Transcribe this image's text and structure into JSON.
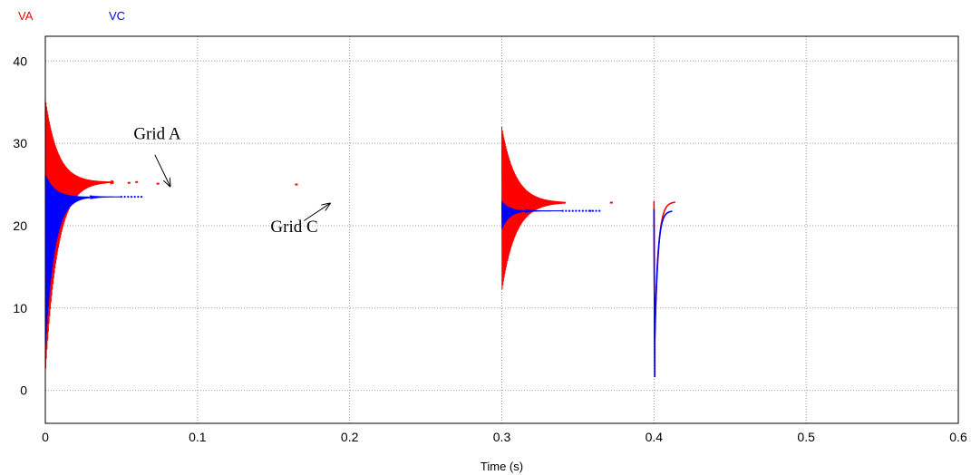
{
  "colors": {
    "VA": "#ff0000",
    "VC": "#0000ff",
    "grid": "#9a9a9a",
    "axis": "#000000",
    "background": "#ffffff"
  },
  "chart_data": {
    "type": "line",
    "xlabel": "Time (s)",
    "ylabel": "",
    "xlim": [
      0,
      0.6
    ],
    "ylim": [
      -4,
      43
    ],
    "x_ticks": [
      "0",
      "0.1",
      "0.2",
      "0.3",
      "0.4",
      "0.5",
      "0.6"
    ],
    "y_ticks": [
      "0",
      "10",
      "20",
      "30",
      "40"
    ],
    "grid": true,
    "legend_position": "top-left",
    "series": [
      {
        "name": "VA",
        "color": "#ff0000",
        "segments": [
          {
            "kind": "ringdown",
            "x_start": 0.0,
            "x_end": 0.045,
            "final": 25.3,
            "upper_start": 35.5,
            "lower_start": 2.0,
            "tau": 0.008
          },
          {
            "kind": "ringdown",
            "x_start": 0.3,
            "x_end": 0.342,
            "final": 22.8,
            "upper_start": 32.0,
            "lower_start": 12.0,
            "tau": 0.009
          },
          {
            "kind": "recovery",
            "x_start": 0.4,
            "x_end": 0.414,
            "min": 2.0,
            "final": 22.9,
            "start": 23.0
          }
        ],
        "dots": [
          [
            0.055,
            25.2
          ],
          [
            0.06,
            25.3
          ],
          [
            0.074,
            25.1
          ],
          [
            0.165,
            25.0
          ],
          [
            0.372,
            22.8
          ]
        ]
      },
      {
        "name": "VC",
        "color": "#0000ff",
        "segments": [
          {
            "kind": "ringdown",
            "x_start": 0.0,
            "x_end": 0.05,
            "final": 23.5,
            "upper_start": 26.3,
            "lower_start": 5.0,
            "tau": 0.006,
            "dotted_until": 0.065
          },
          {
            "kind": "ringdown",
            "x_start": 0.3,
            "x_end": 0.34,
            "final": 21.8,
            "upper_start": 23.0,
            "lower_start": 19.5,
            "tau": 0.005,
            "dotted_until": 0.365
          },
          {
            "kind": "recovery",
            "x_start": 0.4,
            "x_end": 0.412,
            "min": 1.6,
            "final": 21.8,
            "start": 22.0
          }
        ],
        "dots": [
          [
            0.358,
            21.8
          ]
        ]
      }
    ],
    "annotations": [
      {
        "text": "Grid A",
        "text_x": 0.058,
        "text_y": 30.5,
        "arrow_from": [
          0.072,
          28.6
        ],
        "arrow_to": [
          0.082,
          24.8
        ]
      },
      {
        "text": "Grid C",
        "text_x": 0.148,
        "text_y": 19.2,
        "arrow_from": [
          0.17,
          20.6
        ],
        "arrow_to": [
          0.187,
          22.7
        ]
      }
    ]
  }
}
